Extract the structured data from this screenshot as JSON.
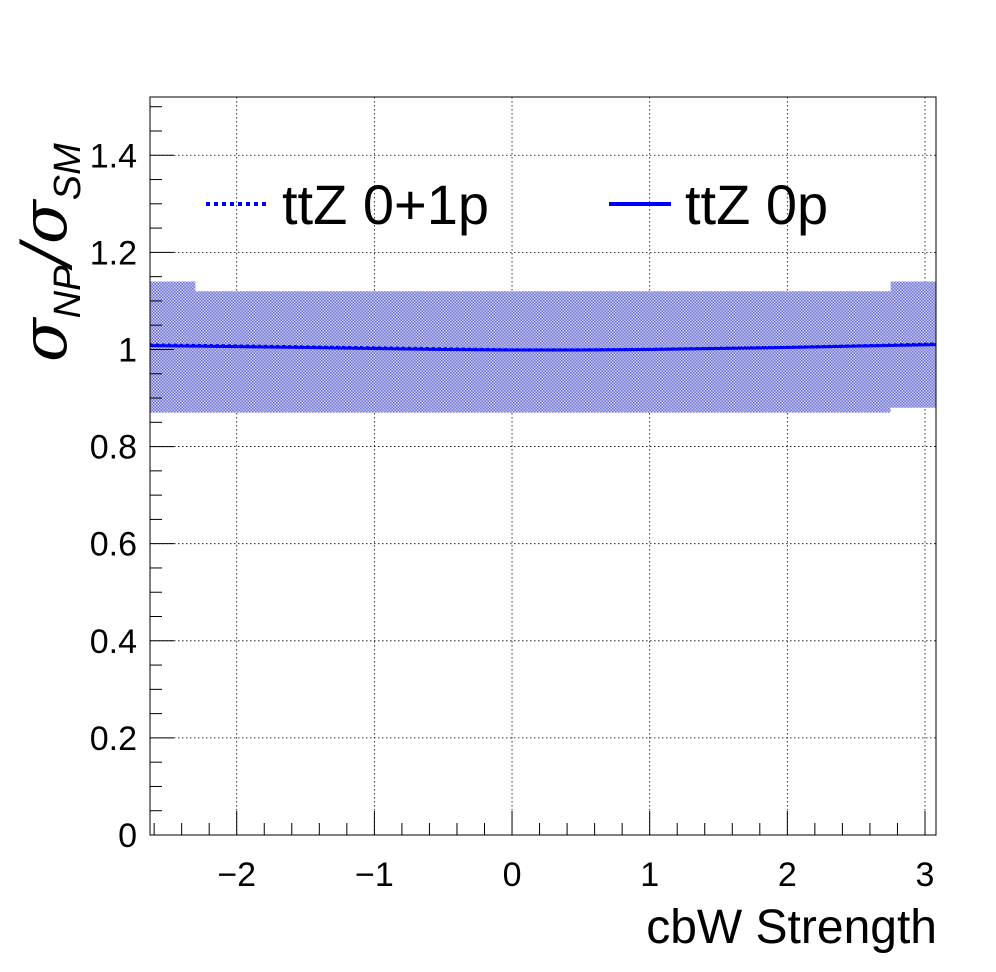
{
  "chart_data": {
    "type": "line",
    "title": "",
    "xlabel": "cbW Strength",
    "ylabel": {
      "symbol": "σ",
      "numerator_sub": "NP",
      "slash": "/",
      "denominator_sub": "SM"
    },
    "xlim": [
      -2.63,
      3.08
    ],
    "ylim": [
      0,
      1.52
    ],
    "x_ticks": [
      -2,
      -1,
      0,
      1,
      2,
      3
    ],
    "x_tick_labels": [
      "−2",
      "−1",
      "0",
      "1",
      "2",
      "3"
    ],
    "y_ticks": [
      0,
      0.2,
      0.4,
      0.6,
      0.8,
      1,
      1.2,
      1.4
    ],
    "y_tick_labels": [
      "0",
      "0.2",
      "0.4",
      "0.6",
      "0.8",
      "1",
      "1.2",
      "1.4"
    ],
    "grid": true,
    "legend_placement": "top",
    "series": [
      {
        "name": "ttZ 0+1p",
        "style": "dotted",
        "color": "#0000ff",
        "x": [
          -2.63,
          -2,
          -1.5,
          -1,
          -0.5,
          0,
          0.5,
          1,
          1.5,
          2,
          2.5,
          3.08
        ],
        "values": [
          1.01,
          1.008,
          1.006,
          1.004,
          1.002,
          1.0,
          1.0,
          1.001,
          1.003,
          1.005,
          1.008,
          1.012
        ]
      },
      {
        "name": "ttZ 0p",
        "style": "solid",
        "color": "#0000ff",
        "x": [
          -2.63,
          -2,
          -1.5,
          -1,
          -0.5,
          0,
          0.5,
          1,
          1.5,
          2,
          2.5,
          3.08
        ],
        "values": [
          1.008,
          1.006,
          1.004,
          1.002,
          1.0,
          0.999,
          0.999,
          1.0,
          1.002,
          1.004,
          1.007,
          1.01
        ]
      }
    ],
    "uncertainty_band": {
      "color": "#6f72d9",
      "x": [
        -2.63,
        -2.3,
        -2.3,
        2.75,
        2.75,
        3.08
      ],
      "upper": [
        1.14,
        1.14,
        1.12,
        1.12,
        1.14,
        1.14
      ],
      "lower": [
        0.87,
        0.87,
        0.87,
        0.87,
        0.88,
        0.88
      ]
    }
  }
}
